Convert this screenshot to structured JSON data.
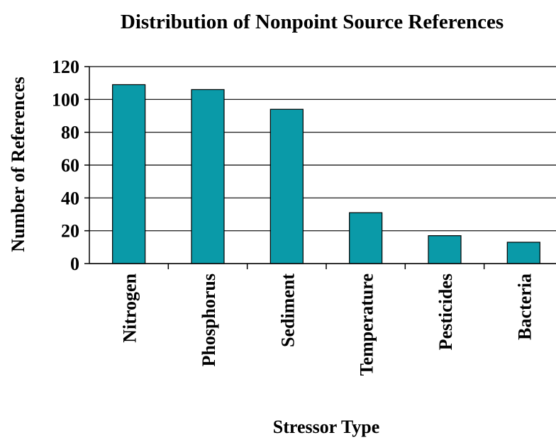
{
  "chart_data": {
    "type": "bar",
    "title": "Distribution of Nonpoint Source References",
    "x_label": "Stressor Type",
    "y_label": "Number of References",
    "categories": [
      "Nitrogen",
      "Phosphorus",
      "Sediment",
      "Temperature",
      "Pesticides",
      "Bacteria"
    ],
    "values": [
      109,
      106,
      94,
      31,
      17,
      13
    ],
    "color": "#0a9aa8",
    "ylim": [
      0,
      120
    ],
    "yticks": [
      0,
      20,
      40,
      60,
      80,
      100,
      120
    ],
    "grid": true
  }
}
